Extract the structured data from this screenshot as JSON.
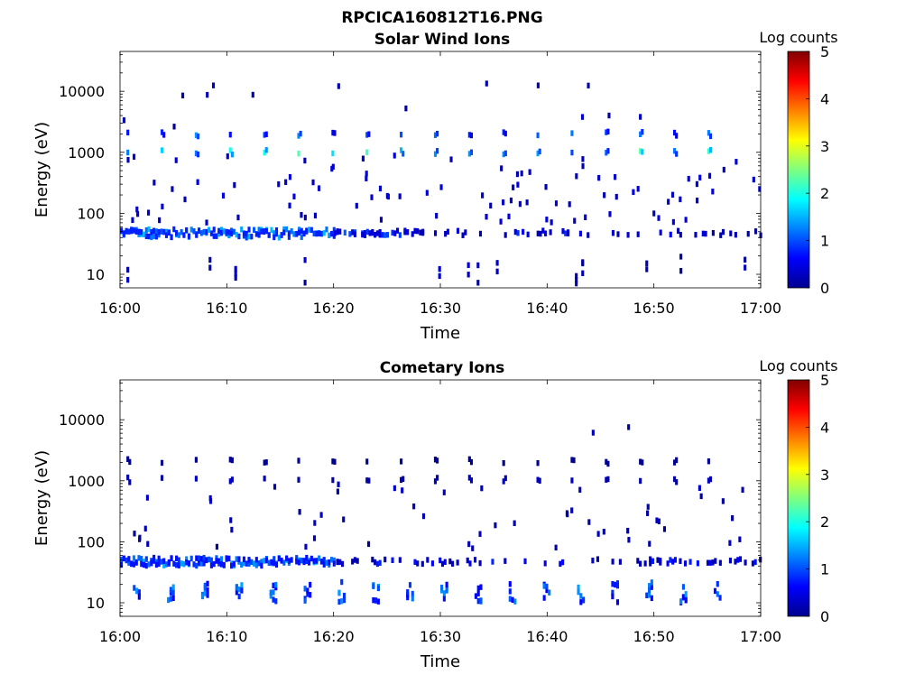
{
  "figure_title": "RPCICA160812T16.PNG",
  "chart_data": [
    {
      "type": "heatmap",
      "title": "Solar Wind Ions",
      "xlabel": "Time",
      "ylabel": "Energy (eV)",
      "x_ticks": [
        "16:00",
        "16:10",
        "16:20",
        "16:30",
        "16:40",
        "16:50",
        "17:00"
      ],
      "x_range_minutes": [
        0,
        60
      ],
      "y_scale": "log",
      "y_ticks": [
        10,
        100,
        1000,
        10000
      ],
      "y_ticklabels": [
        "10",
        "100",
        "1000",
        "10000"
      ],
      "y_range": [
        6,
        45000
      ],
      "colorbar": {
        "label": "Log counts",
        "range": [
          0,
          5
        ],
        "ticks": [
          0,
          1,
          2,
          3,
          4,
          5
        ],
        "colormap": "jet"
      },
      "features": [
        {
          "kind": "band",
          "energy_low": 40,
          "energy_high": 55,
          "t_start": 0,
          "t_end": 20,
          "log_counts": 1.1,
          "fill": 0.92
        },
        {
          "kind": "band",
          "energy_low": 43,
          "energy_high": 52,
          "t_start": 20,
          "t_end": 28,
          "log_counts": 0.6,
          "fill": 0.55
        },
        {
          "kind": "band",
          "energy_low": 43,
          "energy_high": 52,
          "t_start": 28,
          "t_end": 60,
          "log_counts": 0.4,
          "fill": 0.2
        },
        {
          "kind": "periodic",
          "energy": 1000,
          "start": 0.6,
          "period": 3.2,
          "count": 18,
          "log_counts": 1.8
        },
        {
          "kind": "periodic",
          "energy": 2000,
          "start": 0.6,
          "period": 3.2,
          "count": 18,
          "log_counts": 1.2
        },
        {
          "kind": "bursts",
          "energy_low": 7,
          "energy_high": 22,
          "times": [
            0.6,
            8.3,
            10.7,
            17.2,
            29.8,
            32.5,
            33.4,
            35.2,
            42.6,
            43.2,
            49.2,
            52.4,
            58.4
          ],
          "log_counts": 0.1
        },
        {
          "kind": "scatter",
          "energy_low": 70,
          "energy_high": 900,
          "t_start": 0,
          "t_end": 60,
          "count": 95,
          "log_counts": 0.2
        },
        {
          "kind": "scatter",
          "energy_low": 2500,
          "energy_high": 15000,
          "t_start": 0,
          "t_end": 60,
          "count": 14,
          "log_counts": 0.1
        }
      ]
    },
    {
      "type": "heatmap",
      "title": "Cometary Ions",
      "xlabel": "Time",
      "ylabel": "Energy (eV)",
      "x_ticks": [
        "16:00",
        "16:10",
        "16:20",
        "16:30",
        "16:40",
        "16:50",
        "17:00"
      ],
      "x_range_minutes": [
        0,
        60
      ],
      "y_scale": "log",
      "y_ticks": [
        10,
        100,
        1000,
        10000
      ],
      "y_ticklabels": [
        "10",
        "100",
        "1000",
        "10000"
      ],
      "y_range": [
        6,
        45000
      ],
      "colorbar": {
        "label": "Log counts",
        "range": [
          0,
          5
        ],
        "ticks": [
          0,
          1,
          2,
          3,
          4,
          5
        ],
        "colormap": "jet"
      },
      "features": [
        {
          "kind": "band",
          "energy_low": 40,
          "energy_high": 55,
          "t_start": 0,
          "t_end": 20,
          "log_counts": 1.0,
          "fill": 0.92
        },
        {
          "kind": "band",
          "energy_low": 43,
          "energy_high": 52,
          "t_start": 20,
          "t_end": 60,
          "log_counts": 0.4,
          "fill": 0.2
        },
        {
          "kind": "periodic_bursts",
          "energy_low": 10,
          "energy_high": 22,
          "start": 1.2,
          "period": 3.2,
          "count": 18,
          "log_counts": 0.8
        },
        {
          "kind": "periodic",
          "energy": 1050,
          "start": 0.6,
          "period": 3.2,
          "count": 18,
          "log_counts": 0.3
        },
        {
          "kind": "periodic",
          "energy": 2100,
          "start": 0.6,
          "period": 3.2,
          "count": 18,
          "log_counts": 0.1
        },
        {
          "kind": "scatter",
          "energy_low": 70,
          "energy_high": 900,
          "t_start": 0,
          "t_end": 60,
          "count": 55,
          "log_counts": 0.1
        },
        {
          "kind": "scatter",
          "energy_low": 3000,
          "energy_high": 9000,
          "t_start": 40,
          "t_end": 50,
          "count": 2,
          "log_counts": 0.1
        }
      ]
    }
  ]
}
